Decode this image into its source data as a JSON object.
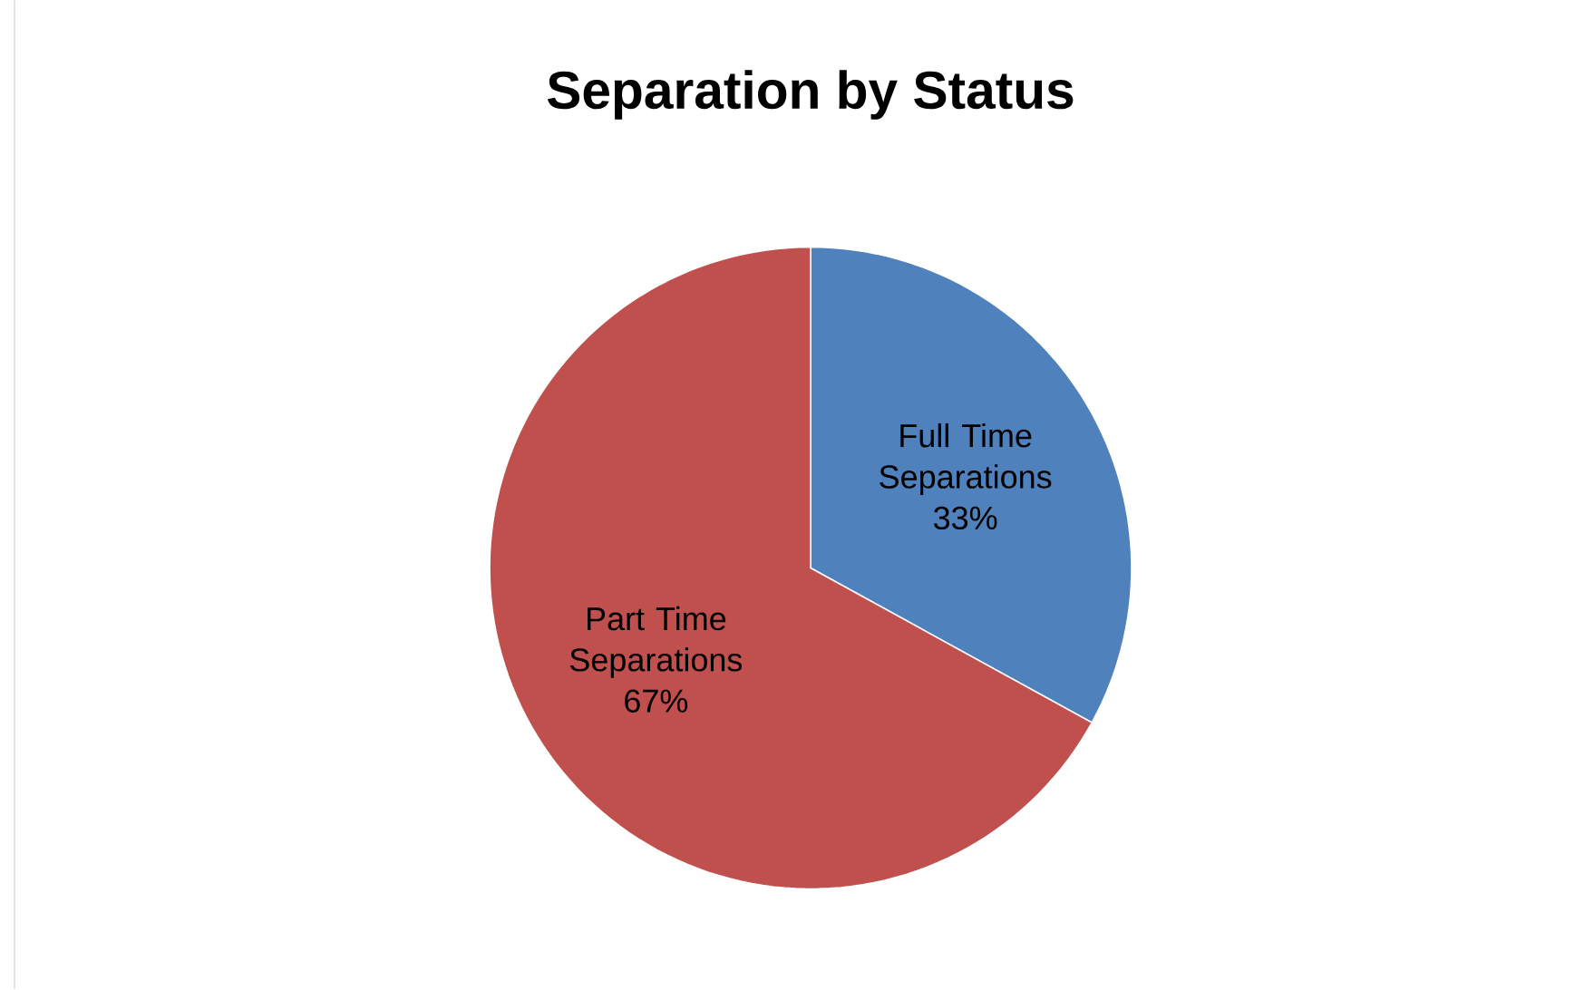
{
  "chart_data": {
    "type": "pie",
    "title": "Separation by Status",
    "categories": [
      "Full Time Separations",
      "Part Time Separations"
    ],
    "values": [
      33,
      67
    ],
    "value_labels": [
      "33%",
      "67%"
    ],
    "colors": [
      "#4f81bd",
      "#c0504d"
    ],
    "legend": false
  }
}
